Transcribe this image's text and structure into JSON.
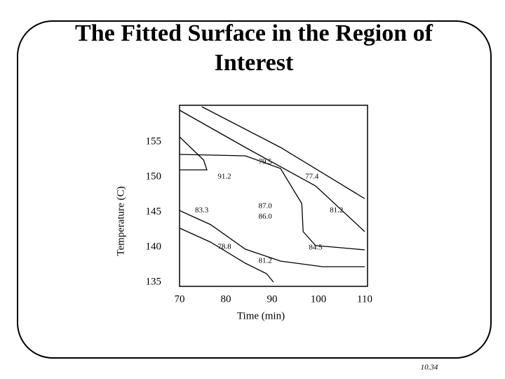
{
  "chart_data": {
    "type": "contour",
    "title": [
      "The Fitted Surface in the Region of",
      "Interest"
    ],
    "xlabel": "Time (min)",
    "ylabel": "Temperature (C)",
    "xlim": [
      70,
      110
    ],
    "ylim": [
      135,
      160
    ],
    "xticks": [
      70,
      80,
      90,
      100,
      110
    ],
    "yticks": [
      135,
      140,
      145,
      150,
      155
    ],
    "color": "#000000",
    "lines": [
      {
        "x": [
          74.8,
          91.8,
          110
        ],
        "y": [
          160,
          154.2,
          146.9
        ]
      },
      {
        "x": [
          70,
          84.2,
          99.4,
          110
        ],
        "y": [
          159.5,
          154.2,
          148.7,
          142.2
        ]
      },
      {
        "x": [
          70,
          75.2,
          75.9,
          70
        ],
        "y": [
          155.7,
          152.4,
          151,
          151
        ]
      },
      {
        "x": [
          70,
          84.2,
          91.8,
          96.4,
          96.7,
          99.4,
          103.2,
          110
        ],
        "y": [
          153.2,
          153,
          151.2,
          146.2,
          142.2,
          140.2,
          140,
          139.6
        ]
      },
      {
        "x": [
          70,
          76.7,
          84.2,
          91.8,
          100.9,
          110
        ],
        "y": [
          145.2,
          143.2,
          139.7,
          138,
          137.2,
          137.2
        ]
      },
      {
        "x": [
          70,
          76.7,
          84.2,
          88.8,
          90.3
        ],
        "y": [
          142.7,
          140.7,
          137.7,
          136.2,
          135
        ]
      }
    ],
    "labels": [
      {
        "text": "79.5",
        "x": 88.5,
        "y": 152.1
      },
      {
        "text": "91.2",
        "x": 79.7,
        "y": 150
      },
      {
        "text": "77.4",
        "x": 98.6,
        "y": 150
      },
      {
        "text": "87.0",
        "x": 88.5,
        "y": 145.8
      },
      {
        "text": "86.0",
        "x": 88.5,
        "y": 144.3
      },
      {
        "text": "83.3",
        "x": 74.8,
        "y": 145.2
      },
      {
        "text": "81.2",
        "x": 103.9,
        "y": 145.2
      },
      {
        "text": "78.8",
        "x": 79.7,
        "y": 140
      },
      {
        "text": "84.5",
        "x": 99.4,
        "y": 139.9
      },
      {
        "text": "81.2",
        "x": 88.5,
        "y": 138
      }
    ]
  },
  "footer": "10.34"
}
